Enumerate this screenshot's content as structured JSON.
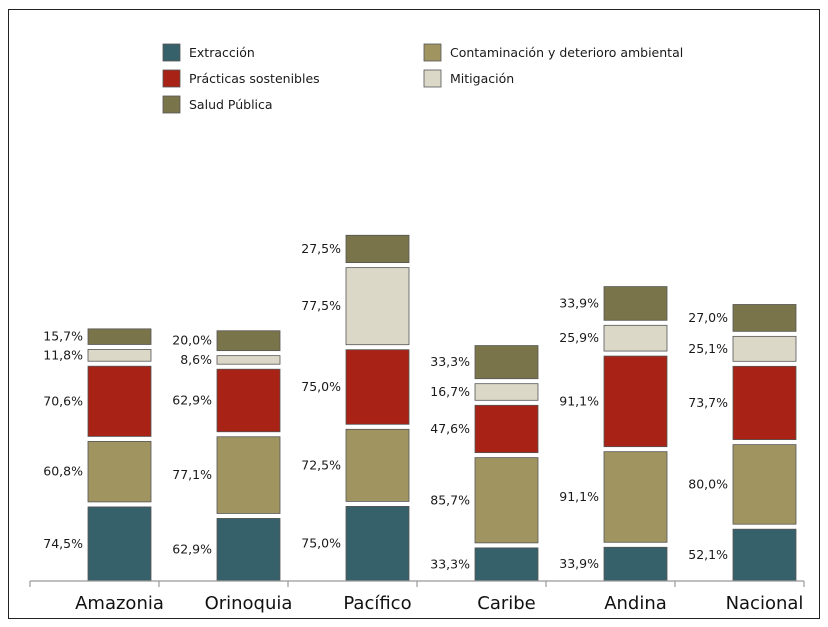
{
  "chart_data": {
    "type": "bar",
    "stacked": true,
    "categories": [
      "Amazonia",
      "Orinoquia",
      "Pacífico",
      "Caribe",
      "Andina",
      "Nacional"
    ],
    "series": [
      {
        "name": "Extracción",
        "color": "#36606a",
        "values": [
          74.5,
          62.9,
          75.0,
          33.3,
          33.9,
          52.1
        ]
      },
      {
        "name": "Contaminación y deterioro ambiental",
        "color": "#a09560",
        "values": [
          60.8,
          77.1,
          72.5,
          85.7,
          91.1,
          80.0
        ]
      },
      {
        "name": "Prácticas sostenibles",
        "color": "#a82215",
        "values": [
          70.6,
          62.9,
          75.0,
          47.6,
          91.1,
          73.7
        ]
      },
      {
        "name": "Mitigación",
        "color": "#dcd8c8",
        "values": [
          11.8,
          8.6,
          77.5,
          16.7,
          25.9,
          25.1
        ]
      },
      {
        "name": "Salud Pública",
        "color": "#7a744a",
        "values": [
          15.7,
          20.0,
          27.5,
          33.3,
          33.9,
          27.0
        ]
      }
    ],
    "value_labels": [
      [
        "74,5%",
        "62,9%",
        "75,0%",
        "33,3%",
        "33,9%",
        "52,1%"
      ],
      [
        "60,8%",
        "77,1%",
        "72,5%",
        "85,7%",
        "91,1%",
        "80,0%"
      ],
      [
        "70,6%",
        "62,9%",
        "75,0%",
        "47,6%",
        "91,1%",
        "73,7%"
      ],
      [
        "11,8%",
        "8,6%",
        "77,5%",
        "16,7%",
        "25,9%",
        "25,1%"
      ],
      [
        "15,7%",
        "20,0%",
        "27,5%",
        "33,3%",
        "33,9%",
        "27,0%"
      ]
    ],
    "legend": {
      "placement": "top",
      "items": [
        {
          "label": "Extracción",
          "color": "#36606a"
        },
        {
          "label": "Contaminación y deterioro ambiental",
          "color": "#a09560"
        },
        {
          "label": "Prácticas sostenibles",
          "color": "#a82215"
        },
        {
          "label": "Mitigación",
          "color": "#dcd8c8"
        },
        {
          "label": "Salud Pública",
          "color": "#7a744a"
        }
      ]
    },
    "grid": false
  }
}
